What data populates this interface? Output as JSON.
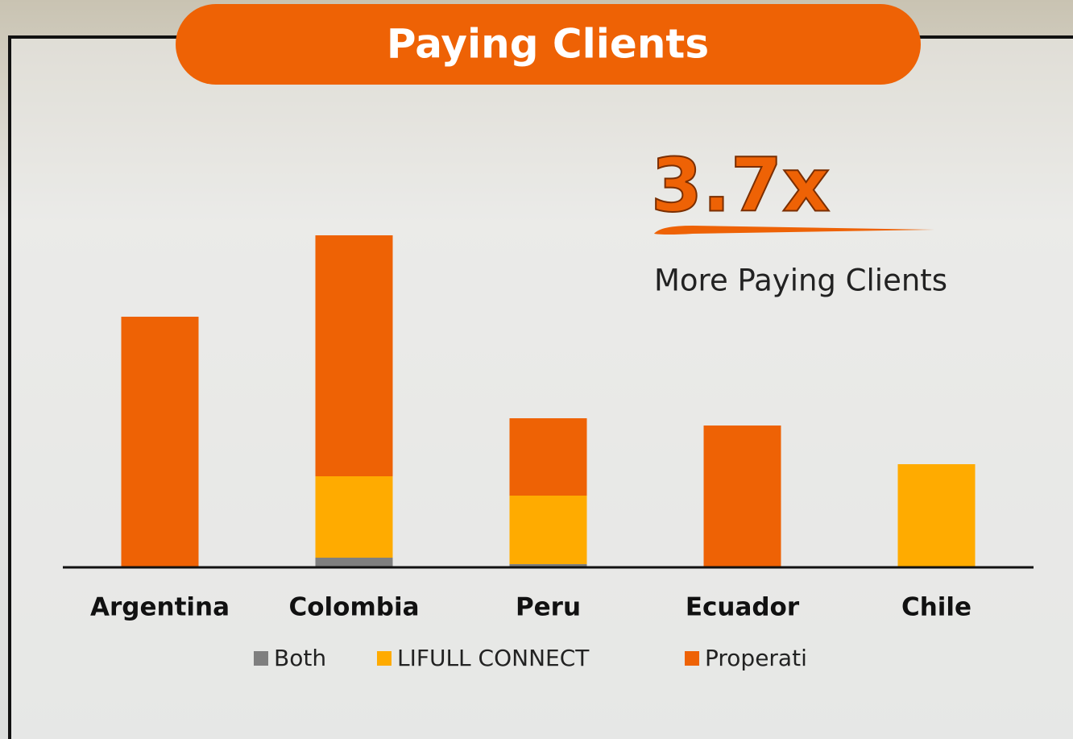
{
  "chart_data": {
    "type": "stacked_bar",
    "title": "Paying Clients",
    "annotation": {
      "value_text": "3.7x",
      "text": "More Paying Clients"
    },
    "categories": [
      "Argentina",
      "Colombia",
      "Peru",
      "Ecuador",
      "Chile"
    ],
    "series": [
      {
        "name": "Both",
        "color": "#7f7f7f",
        "values": [
          0,
          11,
          3,
          0,
          0
        ]
      },
      {
        "name": "LIFULL CONNECT",
        "color": "#ffab00",
        "values": [
          0,
          101,
          85,
          0,
          127
        ]
      },
      {
        "name": "Properati",
        "color": "#ee6205",
        "values": [
          310,
          299,
          96,
          175,
          0
        ]
      }
    ],
    "ylim": [
      0,
      411
    ],
    "legend": "bottom"
  }
}
